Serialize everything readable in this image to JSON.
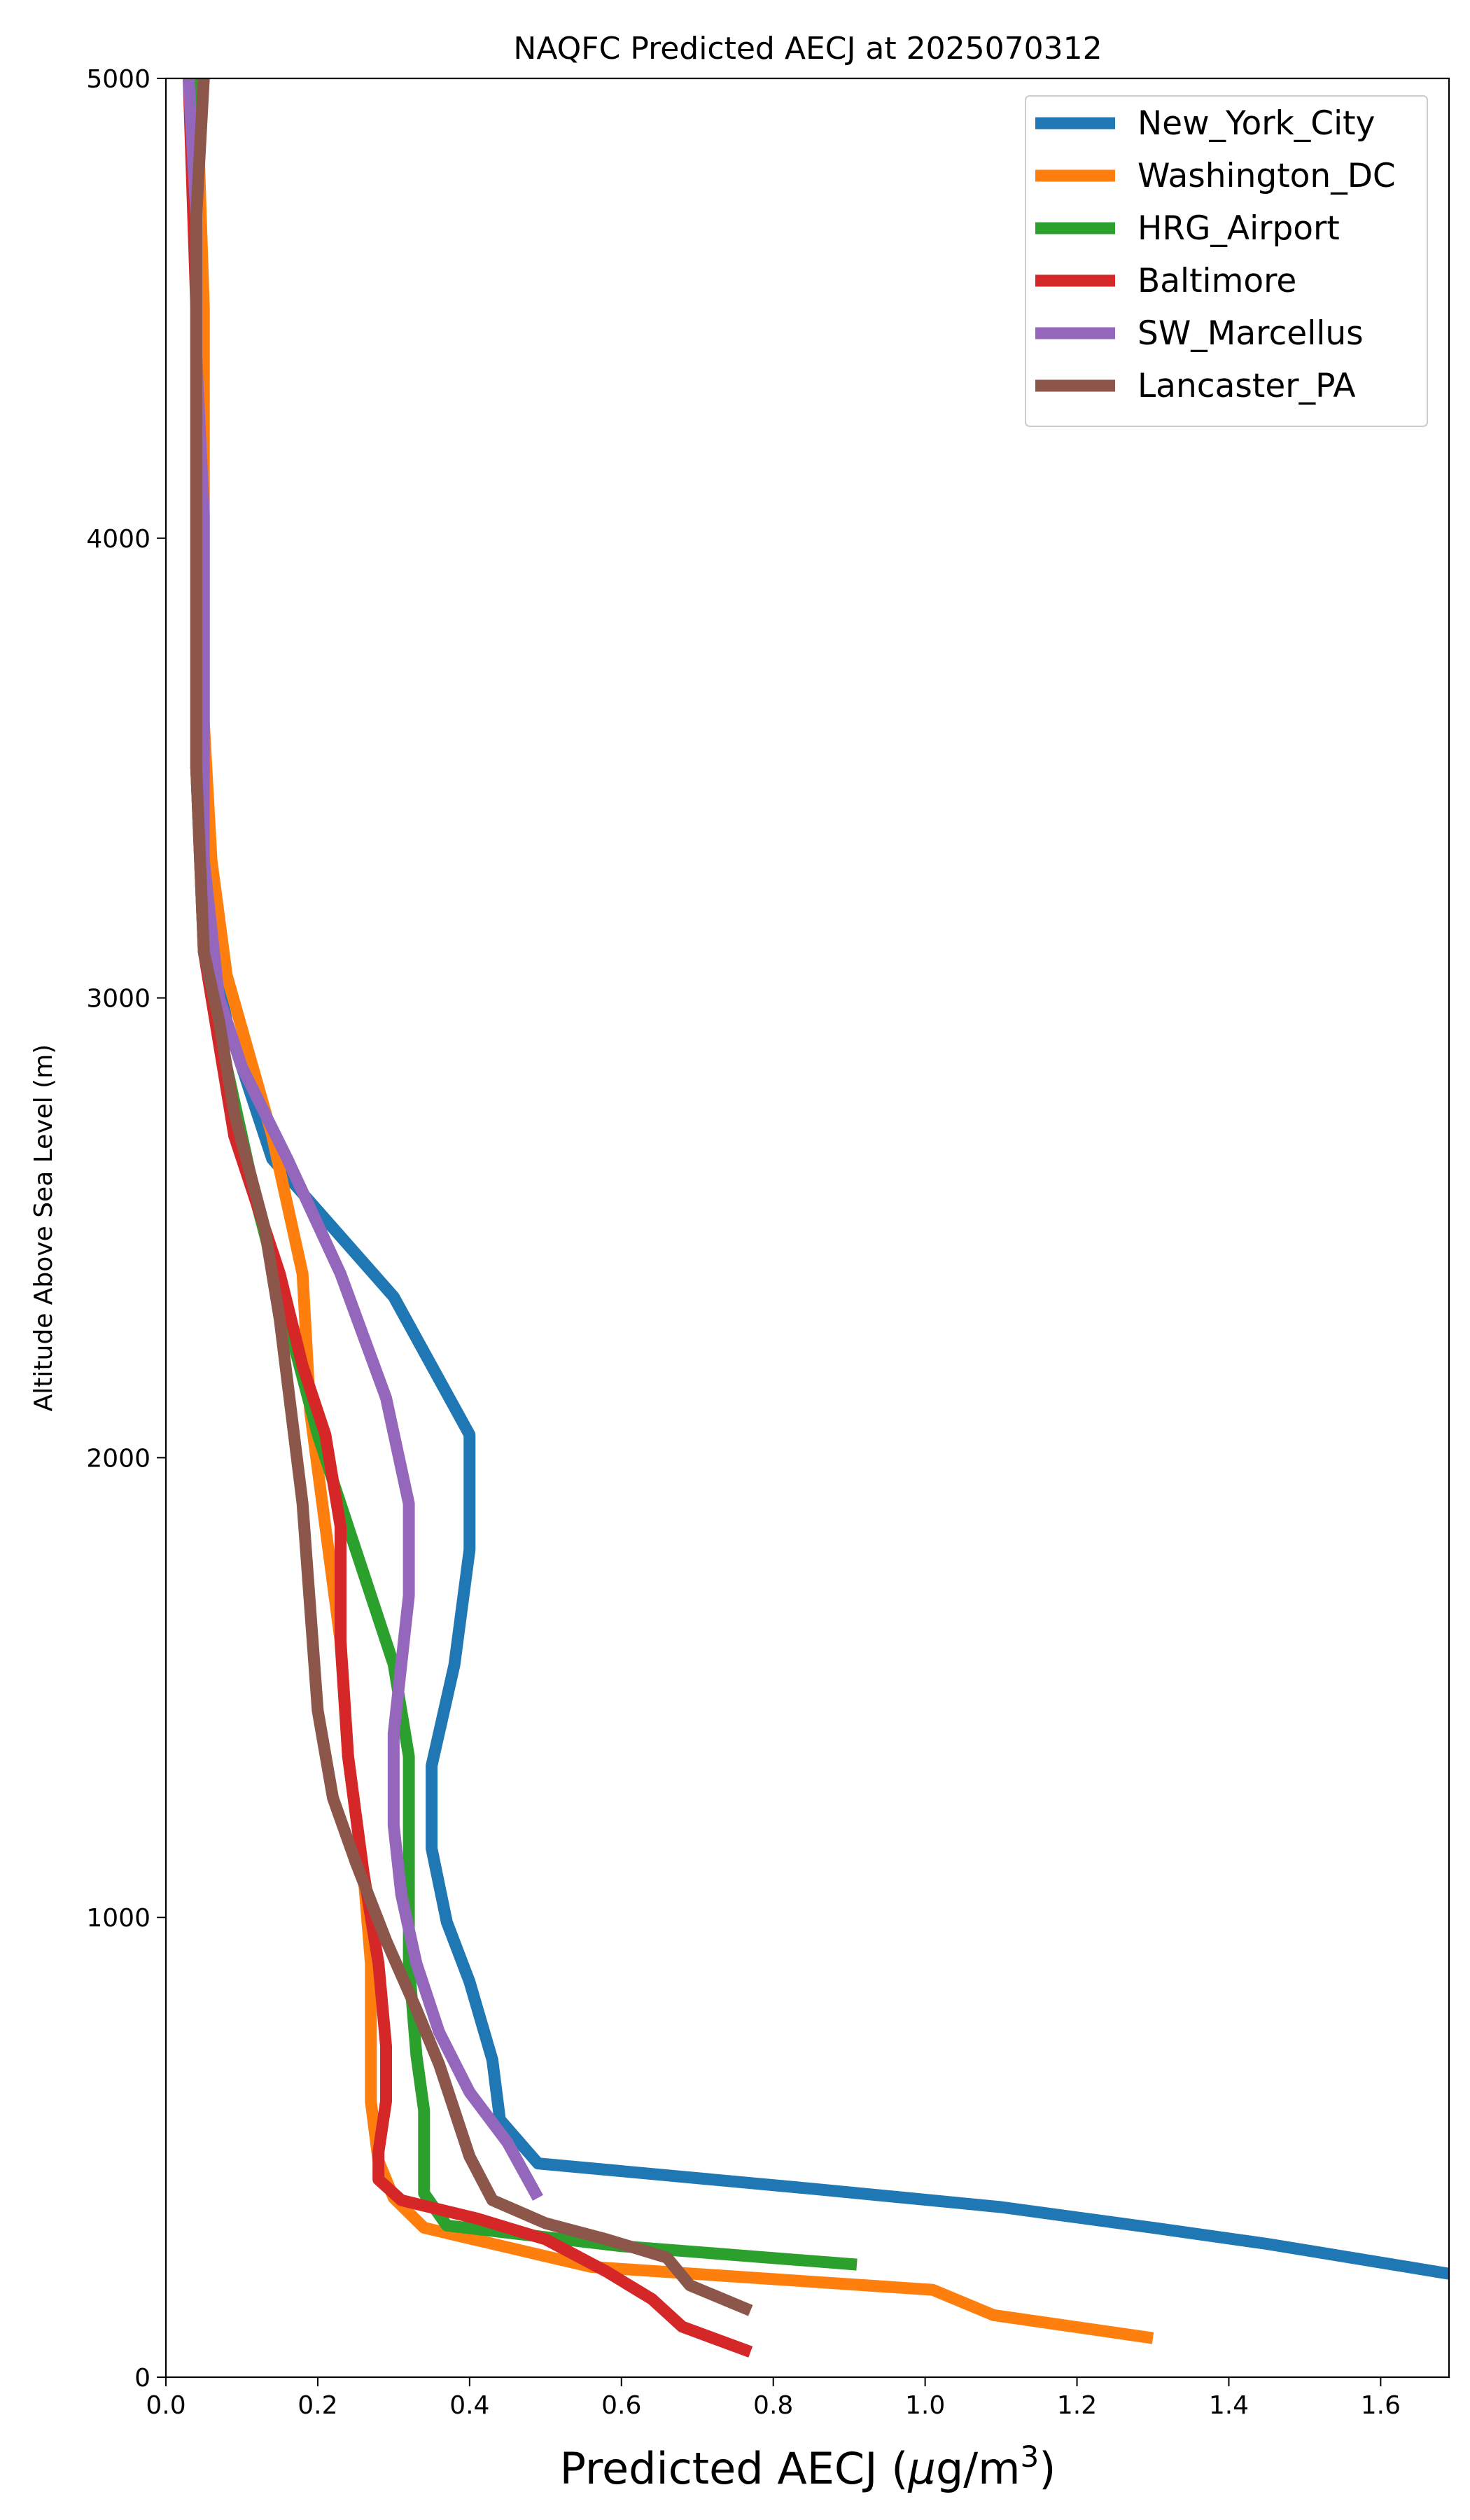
{
  "chart_data": {
    "type": "line",
    "title": "NAQFC Predicted AECJ at 2025070312",
    "xlabel": "Predicted AECJ (",
    "xlabel_unit_mu": "μ",
    "xlabel_unit_rest": "g/m",
    "xlabel_unit_sup": "3",
    "xlabel_close": ")",
    "ylabel": "Altitude Above Sea Level (m)",
    "xlim": [
      0,
      1.69
    ],
    "ylim": [
      0,
      5000
    ],
    "xticks": [
      0.0,
      0.2,
      0.4,
      0.6,
      0.8,
      1.0,
      1.2,
      1.4,
      1.6
    ],
    "xtick_labels": [
      "0.0",
      "0.2",
      "0.4",
      "0.6",
      "0.8",
      "1.0",
      "1.2",
      "1.4",
      "1.6"
    ],
    "yticks": [
      0,
      1000,
      2000,
      3000,
      4000,
      5000
    ],
    "ytick_labels": [
      "0",
      "1000",
      "2000",
      "3000",
      "4000",
      "5000"
    ],
    "grid": false,
    "legend_position": "top-right",
    "series": [
      {
        "name": "New_York_City",
        "color": "#1f77b4",
        "points": [
          [
            1.69,
            225
          ],
          [
            1.45,
            290
          ],
          [
            1.3,
            325
          ],
          [
            1.1,
            370
          ],
          [
            0.85,
            410
          ],
          [
            0.49,
            465
          ],
          [
            0.44,
            560
          ],
          [
            0.43,
            690
          ],
          [
            0.4,
            860
          ],
          [
            0.37,
            990
          ],
          [
            0.35,
            1150
          ],
          [
            0.35,
            1330
          ],
          [
            0.38,
            1550
          ],
          [
            0.4,
            1800
          ],
          [
            0.4,
            2050
          ],
          [
            0.3,
            2350
          ],
          [
            0.14,
            2650
          ],
          [
            0.08,
            2950
          ],
          [
            0.05,
            3200
          ],
          [
            0.04,
            3500
          ],
          [
            0.04,
            4000
          ],
          [
            0.04,
            4500
          ],
          [
            0.04,
            5000
          ]
        ]
      },
      {
        "name": "Washington_DC",
        "color": "#ff7f0e",
        "points": [
          [
            1.3,
            85
          ],
          [
            1.09,
            135
          ],
          [
            1.01,
            190
          ],
          [
            0.56,
            240
          ],
          [
            0.34,
            325
          ],
          [
            0.3,
            390
          ],
          [
            0.28,
            470
          ],
          [
            0.27,
            600
          ],
          [
            0.27,
            750
          ],
          [
            0.27,
            900
          ],
          [
            0.26,
            1100
          ],
          [
            0.24,
            1350
          ],
          [
            0.23,
            1600
          ],
          [
            0.21,
            1850
          ],
          [
            0.19,
            2100
          ],
          [
            0.18,
            2400
          ],
          [
            0.14,
            2700
          ],
          [
            0.08,
            3050
          ],
          [
            0.06,
            3300
          ],
          [
            0.05,
            3600
          ],
          [
            0.05,
            4000
          ],
          [
            0.05,
            4500
          ],
          [
            0.04,
            5000
          ]
        ]
      },
      {
        "name": "HRG_Airport",
        "color": "#2ca02c",
        "points": [
          [
            0.91,
            245
          ],
          [
            0.6,
            285
          ],
          [
            0.37,
            330
          ],
          [
            0.34,
            400
          ],
          [
            0.34,
            480
          ],
          [
            0.34,
            580
          ],
          [
            0.33,
            700
          ],
          [
            0.32,
            900
          ],
          [
            0.32,
            1100
          ],
          [
            0.32,
            1350
          ],
          [
            0.3,
            1550
          ],
          [
            0.26,
            1750
          ],
          [
            0.2,
            2050
          ],
          [
            0.16,
            2300
          ],
          [
            0.12,
            2550
          ],
          [
            0.08,
            2850
          ],
          [
            0.05,
            3100
          ],
          [
            0.04,
            3500
          ],
          [
            0.04,
            4000
          ],
          [
            0.04,
            4500
          ],
          [
            0.04,
            5000
          ]
        ]
      },
      {
        "name": "Baltimore",
        "color": "#d62728",
        "points": [
          [
            0.77,
            55
          ],
          [
            0.68,
            110
          ],
          [
            0.64,
            170
          ],
          [
            0.58,
            230
          ],
          [
            0.5,
            300
          ],
          [
            0.41,
            345
          ],
          [
            0.31,
            385
          ],
          [
            0.28,
            430
          ],
          [
            0.28,
            490
          ],
          [
            0.29,
            600
          ],
          [
            0.29,
            720
          ],
          [
            0.28,
            900
          ],
          [
            0.26,
            1100
          ],
          [
            0.24,
            1350
          ],
          [
            0.23,
            1600
          ],
          [
            0.23,
            1850
          ],
          [
            0.21,
            2050
          ],
          [
            0.18,
            2200
          ],
          [
            0.15,
            2400
          ],
          [
            0.12,
            2550
          ],
          [
            0.09,
            2700
          ],
          [
            0.07,
            2900
          ],
          [
            0.05,
            3100
          ],
          [
            0.04,
            3500
          ],
          [
            0.04,
            4000
          ],
          [
            0.04,
            4500
          ],
          [
            0.03,
            5000
          ]
        ]
      },
      {
        "name": "SW_Marcellus",
        "color": "#9467bd",
        "points": [
          [
            0.49,
            390
          ],
          [
            0.45,
            510
          ],
          [
            0.4,
            620
          ],
          [
            0.36,
            750
          ],
          [
            0.33,
            900
          ],
          [
            0.31,
            1050
          ],
          [
            0.3,
            1200
          ],
          [
            0.3,
            1400
          ],
          [
            0.32,
            1700
          ],
          [
            0.32,
            1900
          ],
          [
            0.29,
            2130
          ],
          [
            0.23,
            2400
          ],
          [
            0.16,
            2650
          ],
          [
            0.1,
            2850
          ],
          [
            0.07,
            3000
          ],
          [
            0.05,
            3300
          ],
          [
            0.05,
            3600
          ],
          [
            0.05,
            4050
          ],
          [
            0.04,
            4400
          ],
          [
            0.04,
            4700
          ],
          [
            0.03,
            5000
          ]
        ]
      },
      {
        "name": "Lancaster_PA",
        "color": "#8c564b",
        "points": [
          [
            0.77,
            145
          ],
          [
            0.69,
            200
          ],
          [
            0.66,
            260
          ],
          [
            0.58,
            300
          ],
          [
            0.5,
            335
          ],
          [
            0.43,
            385
          ],
          [
            0.4,
            480
          ],
          [
            0.38,
            580
          ],
          [
            0.36,
            680
          ],
          [
            0.33,
            800
          ],
          [
            0.29,
            950
          ],
          [
            0.25,
            1120
          ],
          [
            0.22,
            1260
          ],
          [
            0.2,
            1450
          ],
          [
            0.18,
            1900
          ],
          [
            0.15,
            2300
          ],
          [
            0.13,
            2500
          ],
          [
            0.09,
            2750
          ],
          [
            0.07,
            2950
          ],
          [
            0.05,
            3100
          ],
          [
            0.04,
            3500
          ],
          [
            0.04,
            3900
          ],
          [
            0.04,
            4300
          ],
          [
            0.04,
            4700
          ],
          [
            0.05,
            5000
          ]
        ]
      }
    ]
  }
}
